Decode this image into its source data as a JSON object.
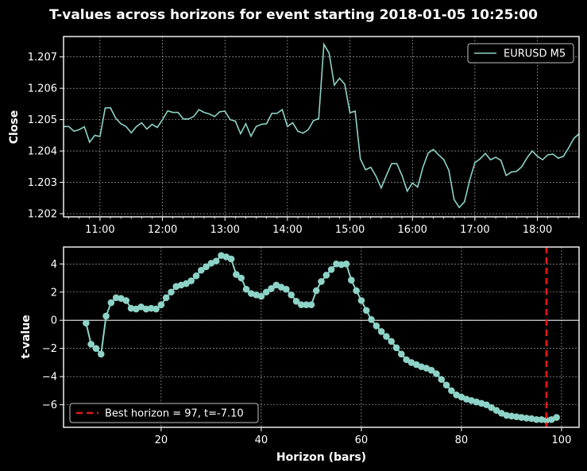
{
  "figure": {
    "title": "T-values across horizons for event starting 2018-01-05 10:25:00",
    "background": "#000000",
    "foreground": "#ffffff",
    "grid_color": "#bfbfbf"
  },
  "chart_data": [
    {
      "type": "line",
      "panel": "top",
      "xlabel": "",
      "ylabel": "Close",
      "x_tick_labels": [
        "11:00",
        "12:00",
        "13:00",
        "14:00",
        "15:00",
        "16:00",
        "17:00",
        "18:00"
      ],
      "y_ticks": [
        1.202,
        1.203,
        1.204,
        1.205,
        1.206,
        1.207
      ],
      "y_tick_labels": [
        "1.202",
        "1.203",
        "1.204",
        "1.205",
        "1.206",
        "1.207"
      ],
      "xlim_minutes": [
        625,
        1120
      ],
      "ylim": [
        1.2019,
        1.20765
      ],
      "grid": true,
      "legend": {
        "position": "top-right",
        "entries": [
          "EURUSD M5"
        ]
      },
      "series": [
        {
          "name": "EURUSD M5",
          "color": "#8dd3c7",
          "x_start_minutes": 625,
          "x_step_minutes": 5,
          "values": [
            1.20478,
            1.20478,
            1.20463,
            1.20468,
            1.20477,
            1.20428,
            1.2045,
            1.20446,
            1.20537,
            1.20538,
            1.20505,
            1.20487,
            1.20478,
            1.20458,
            1.20478,
            1.2049,
            1.2047,
            1.20485,
            1.20475,
            1.205,
            1.20528,
            1.20523,
            1.20523,
            1.20502,
            1.20502,
            1.2051,
            1.20532,
            1.20523,
            1.20518,
            1.2051,
            1.20525,
            1.20527,
            1.205,
            1.20495,
            1.20455,
            1.20487,
            1.20447,
            1.20478,
            1.20485,
            1.20487,
            1.2052,
            1.2052,
            1.20532,
            1.20478,
            1.2049,
            1.20463,
            1.20457,
            1.20468,
            1.20497,
            1.20503,
            1.2074,
            1.20712,
            1.2061,
            1.20632,
            1.20613,
            1.20522,
            1.20527,
            1.20375,
            1.2034,
            1.20348,
            1.2032,
            1.20282,
            1.20322,
            1.2036,
            1.2036,
            1.20322,
            1.20272,
            1.20298,
            1.20285,
            1.20347,
            1.20393,
            1.20405,
            1.20388,
            1.20373,
            1.20338,
            1.20245,
            1.2022,
            1.20238,
            1.20307,
            1.20363,
            1.20375,
            1.20392,
            1.20372,
            1.2038,
            1.2037,
            1.20322,
            1.20333,
            1.20335,
            1.2035,
            1.20378,
            1.204,
            1.20383,
            1.20372,
            1.20388,
            1.2039,
            1.20377,
            1.20383,
            1.2041,
            1.2044,
            1.20455
          ]
        }
      ]
    },
    {
      "type": "scatter",
      "panel": "bottom",
      "xlabel": "Horizon (bars)",
      "ylabel": "t-value",
      "x_ticks": [
        20,
        40,
        60,
        80,
        100
      ],
      "x_tick_labels": [
        "20",
        "40",
        "60",
        "80",
        "100"
      ],
      "y_ticks": [
        -6,
        -4,
        -2,
        0,
        2,
        4
      ],
      "y_tick_labels": [
        "−6",
        "−4",
        "−2",
        "0",
        "2",
        "4"
      ],
      "xlim": [
        0.5,
        103.5
      ],
      "ylim": [
        -7.6,
        5.2
      ],
      "grid": true,
      "zero_line": true,
      "legend": {
        "position": "bottom-left",
        "entries": [
          "Best horizon = 97, t=-7.10"
        ]
      },
      "series": [
        {
          "name": "t-value",
          "color": "#8dd3c7",
          "x_start": 5,
          "x_step": 1,
          "values": [
            -0.2,
            -1.7,
            -2.0,
            -2.4,
            0.3,
            1.25,
            1.6,
            1.55,
            1.4,
            0.85,
            0.8,
            0.95,
            0.8,
            0.85,
            0.8,
            1.1,
            1.6,
            2.0,
            2.4,
            2.5,
            2.6,
            2.8,
            3.15,
            3.55,
            3.8,
            4.05,
            4.2,
            4.6,
            4.5,
            4.35,
            3.25,
            3.0,
            2.2,
            1.9,
            1.8,
            1.7,
            2.0,
            2.25,
            2.5,
            2.35,
            2.2,
            1.8,
            1.35,
            1.1,
            1.1,
            1.1,
            2.1,
            2.75,
            3.2,
            3.6,
            4.0,
            3.95,
            4.0,
            2.85,
            2.1,
            1.4,
            0.7,
            0.05,
            -0.4,
            -0.8,
            -1.15,
            -1.5,
            -1.95,
            -2.4,
            -2.8,
            -3.0,
            -3.15,
            -3.3,
            -3.4,
            -3.55,
            -3.8,
            -4.2,
            -4.6,
            -5.0,
            -5.3,
            -5.45,
            -5.6,
            -5.7,
            -5.8,
            -5.9,
            -6.0,
            -6.2,
            -6.4,
            -6.6,
            -6.75,
            -6.8,
            -6.85,
            -6.9,
            -6.95,
            -6.98,
            -7.05,
            -7.05,
            -7.1,
            -7.05,
            -6.9
          ]
        }
      ],
      "best_horizon": {
        "x": 97,
        "t": -7.1,
        "label": "Best horizon = 97, t=-7.10",
        "color": "#e41a1c"
      }
    }
  ]
}
